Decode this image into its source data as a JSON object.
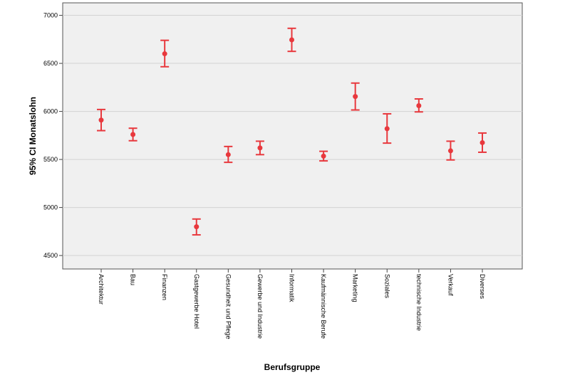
{
  "chart_data": {
    "type": "errorbar",
    "xlabel": "Berufsgruppe",
    "ylabel": "95% CI Monatslohn",
    "ylim": [
      4360,
      7130
    ],
    "yticks": [
      4500,
      5000,
      5500,
      6000,
      6500,
      7000
    ],
    "grid": "horizontal",
    "colors": {
      "marker": "#e8383d",
      "grid": "#d2d2d2",
      "plot_bg": "#f0f0f0"
    },
    "categories": [
      "Architektur",
      "Bau",
      "Finanzen",
      "Gastgewerbe Hotel",
      "Gesundheit und Pflege",
      "Gewerbe und Industrie",
      "Informatik",
      "Kaufmännische Berufe",
      "Marketing",
      "Soziales",
      "technische Industrie",
      "Verkauf",
      "Diverses"
    ],
    "mean": [
      5910,
      5760,
      6600,
      4800,
      5550,
      5620,
      6745,
      5535,
      6155,
      5820,
      6060,
      5590,
      5675
    ],
    "lower": [
      5800,
      5695,
      6465,
      4715,
      5470,
      5550,
      6625,
      5485,
      6015,
      5670,
      5995,
      5495,
      5575
    ],
    "upper": [
      6020,
      5825,
      6740,
      4880,
      5635,
      5690,
      6865,
      5585,
      6295,
      5975,
      6130,
      5690,
      5775
    ]
  }
}
